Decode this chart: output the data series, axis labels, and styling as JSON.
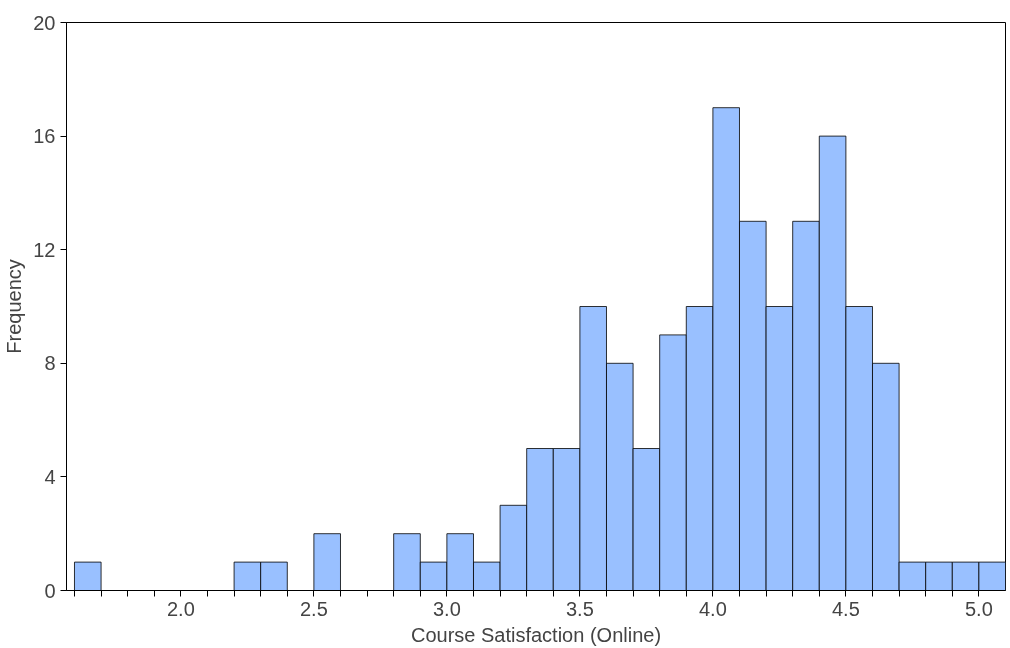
{
  "chart_data": {
    "type": "histogram",
    "xlabel": "Course Satisfaction (Online)",
    "ylabel": "Frequency",
    "bins": [
      1.6,
      1.7,
      1.8,
      1.9,
      2.0,
      2.1,
      2.2,
      2.3,
      2.4,
      2.5,
      2.6,
      2.7,
      2.8,
      2.9,
      3.0,
      3.1,
      3.2,
      3.3,
      3.4,
      3.5,
      3.6,
      3.7,
      3.8,
      3.9,
      4.0,
      4.1,
      4.2,
      4.3,
      4.4,
      4.5,
      4.6,
      4.7,
      4.8,
      4.9,
      5.0,
      5.1
    ],
    "values": [
      1,
      0,
      0,
      0,
      0,
      0,
      1,
      1,
      0,
      2,
      0,
      0,
      2,
      1,
      2,
      1,
      3,
      5,
      5,
      10,
      8,
      5,
      9,
      10,
      17,
      13,
      10,
      13,
      16,
      10,
      8,
      1,
      1,
      1,
      1
    ],
    "color": "#99c0ff",
    "xlim": [
      1.57,
      5.1
    ],
    "ylim": [
      0,
      20
    ],
    "xticks": [
      {
        "value": 1.6,
        "label": null
      },
      {
        "value": 1.7,
        "label": null
      },
      {
        "value": 1.8,
        "label": null
      },
      {
        "value": 1.9,
        "label": null
      },
      {
        "value": 2.0,
        "label": "2.0"
      },
      {
        "value": 2.1,
        "label": null
      },
      {
        "value": 2.2,
        "label": null
      },
      {
        "value": 2.3,
        "label": null
      },
      {
        "value": 2.4,
        "label": null
      },
      {
        "value": 2.5,
        "label": "2.5"
      },
      {
        "value": 2.6,
        "label": null
      },
      {
        "value": 2.7,
        "label": null
      },
      {
        "value": 2.8,
        "label": null
      },
      {
        "value": 2.9,
        "label": null
      },
      {
        "value": 3.0,
        "label": "3.0"
      },
      {
        "value": 3.1,
        "label": null
      },
      {
        "value": 3.2,
        "label": null
      },
      {
        "value": 3.3,
        "label": null
      },
      {
        "value": 3.4,
        "label": null
      },
      {
        "value": 3.5,
        "label": "3.5"
      },
      {
        "value": 3.6,
        "label": null
      },
      {
        "value": 3.7,
        "label": null
      },
      {
        "value": 3.8,
        "label": null
      },
      {
        "value": 3.9,
        "label": null
      },
      {
        "value": 4.0,
        "label": "4.0"
      },
      {
        "value": 4.1,
        "label": null
      },
      {
        "value": 4.2,
        "label": null
      },
      {
        "value": 4.3,
        "label": null
      },
      {
        "value": 4.4,
        "label": null
      },
      {
        "value": 4.5,
        "label": "4.5"
      },
      {
        "value": 4.6,
        "label": null
      },
      {
        "value": 4.7,
        "label": null
      },
      {
        "value": 4.8,
        "label": null
      },
      {
        "value": 4.9,
        "label": null
      },
      {
        "value": 5.0,
        "label": "5.0"
      }
    ],
    "yticks": [
      0,
      4,
      8,
      12,
      16,
      20
    ]
  }
}
